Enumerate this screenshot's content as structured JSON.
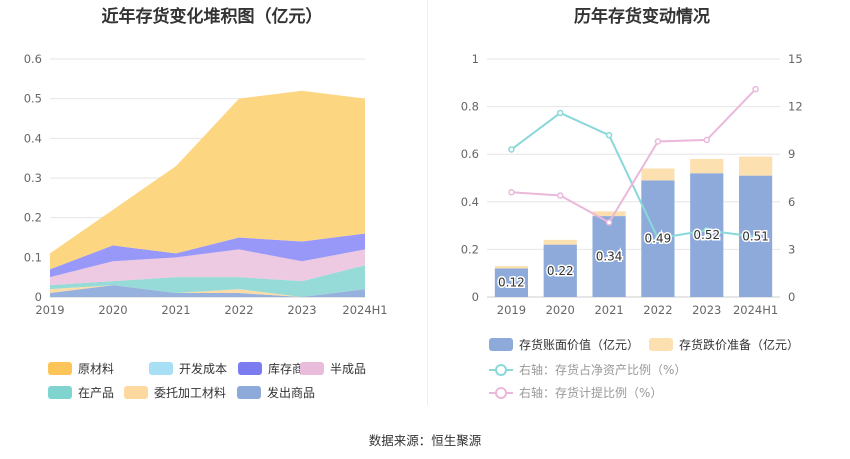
{
  "left_title": "近年存货变化堆积图（亿元）",
  "right_title": "历年存货变动情况",
  "source": "数据来源：恒生聚源",
  "chart_data": [
    {
      "type": "area",
      "stacked": true,
      "title": "近年存货变化堆积图（亿元）",
      "categories": [
        "2019",
        "2020",
        "2021",
        "2022",
        "2023",
        "2024H1"
      ],
      "ylim": [
        0,
        0.6
      ],
      "yticks": [
        "0",
        "0.1",
        "0.2",
        "0.3",
        "0.4",
        "0.5",
        "0.6"
      ],
      "grid": true,
      "legend_position": "bottom",
      "series": [
        {
          "name": "发出商品",
          "color": "#8eaadb",
          "values": [
            0.01,
            0.03,
            0.01,
            0.01,
            0.0,
            0.02
          ]
        },
        {
          "name": "委托加工材料",
          "color": "#fdd9a0",
          "values": [
            0.01,
            0.0,
            0.0,
            0.01,
            0.0,
            0.0
          ]
        },
        {
          "name": "在产品",
          "color": "#8dd8d4",
          "values": [
            0.01,
            0.01,
            0.04,
            0.03,
            0.04,
            0.06
          ]
        },
        {
          "name": "半成品",
          "color": "#ecc4e0",
          "values": [
            0.02,
            0.05,
            0.05,
            0.07,
            0.05,
            0.04
          ]
        },
        {
          "name": "库存商品",
          "color": "#8e8ff6",
          "values": [
            0.02,
            0.04,
            0.01,
            0.03,
            0.05,
            0.04
          ]
        },
        {
          "name": "开发成本",
          "color": "#a7e0f5",
          "values": [
            0.0,
            0.0,
            0.0,
            0.0,
            0.0,
            0.0
          ]
        },
        {
          "name": "原材料",
          "color": "#fdd276",
          "values": [
            0.04,
            0.09,
            0.22,
            0.35,
            0.38,
            0.34
          ]
        }
      ],
      "legend_order": [
        "原材料",
        "开发成本",
        "库存商品",
        "半成品",
        "在产品",
        "委托加工材料",
        "发出商品"
      ]
    },
    {
      "type": "bar",
      "stacked": true,
      "title": "历年存货变动情况",
      "categories": [
        "2019",
        "2020",
        "2021",
        "2022",
        "2023",
        "2024H1"
      ],
      "ylim": [
        0,
        1
      ],
      "yticks": [
        "0",
        "0.2",
        "0.4",
        "0.6",
        "0.8",
        "1"
      ],
      "y2lim": [
        0,
        15
      ],
      "y2ticks": [
        "0",
        "3",
        "6",
        "9",
        "12",
        "15"
      ],
      "grid": true,
      "legend_position": "bottom",
      "series": [
        {
          "name": "存货账面价值（亿元）",
          "color": "#8eaadb",
          "values": [
            0.12,
            0.22,
            0.34,
            0.49,
            0.52,
            0.51
          ],
          "labels": [
            "0.12",
            "0.22",
            "0.34",
            "0.49",
            "0.52",
            "0.51"
          ]
        },
        {
          "name": "存货跌价准备（亿元）",
          "color": "#fde0b0",
          "values": [
            0.01,
            0.02,
            0.02,
            0.05,
            0.06,
            0.08
          ]
        }
      ],
      "lines": [
        {
          "name": "右轴：存货占净资产比例（%）",
          "color": "#8ad8da",
          "axis": "right",
          "values": [
            9.3,
            11.6,
            10.2,
            3.7,
            4.2,
            3.8
          ]
        },
        {
          "name": "右轴：存货计提比例（%）",
          "color": "#eab8db",
          "axis": "right",
          "values": [
            6.6,
            6.4,
            4.7,
            9.8,
            9.9,
            13.1
          ]
        }
      ]
    }
  ]
}
